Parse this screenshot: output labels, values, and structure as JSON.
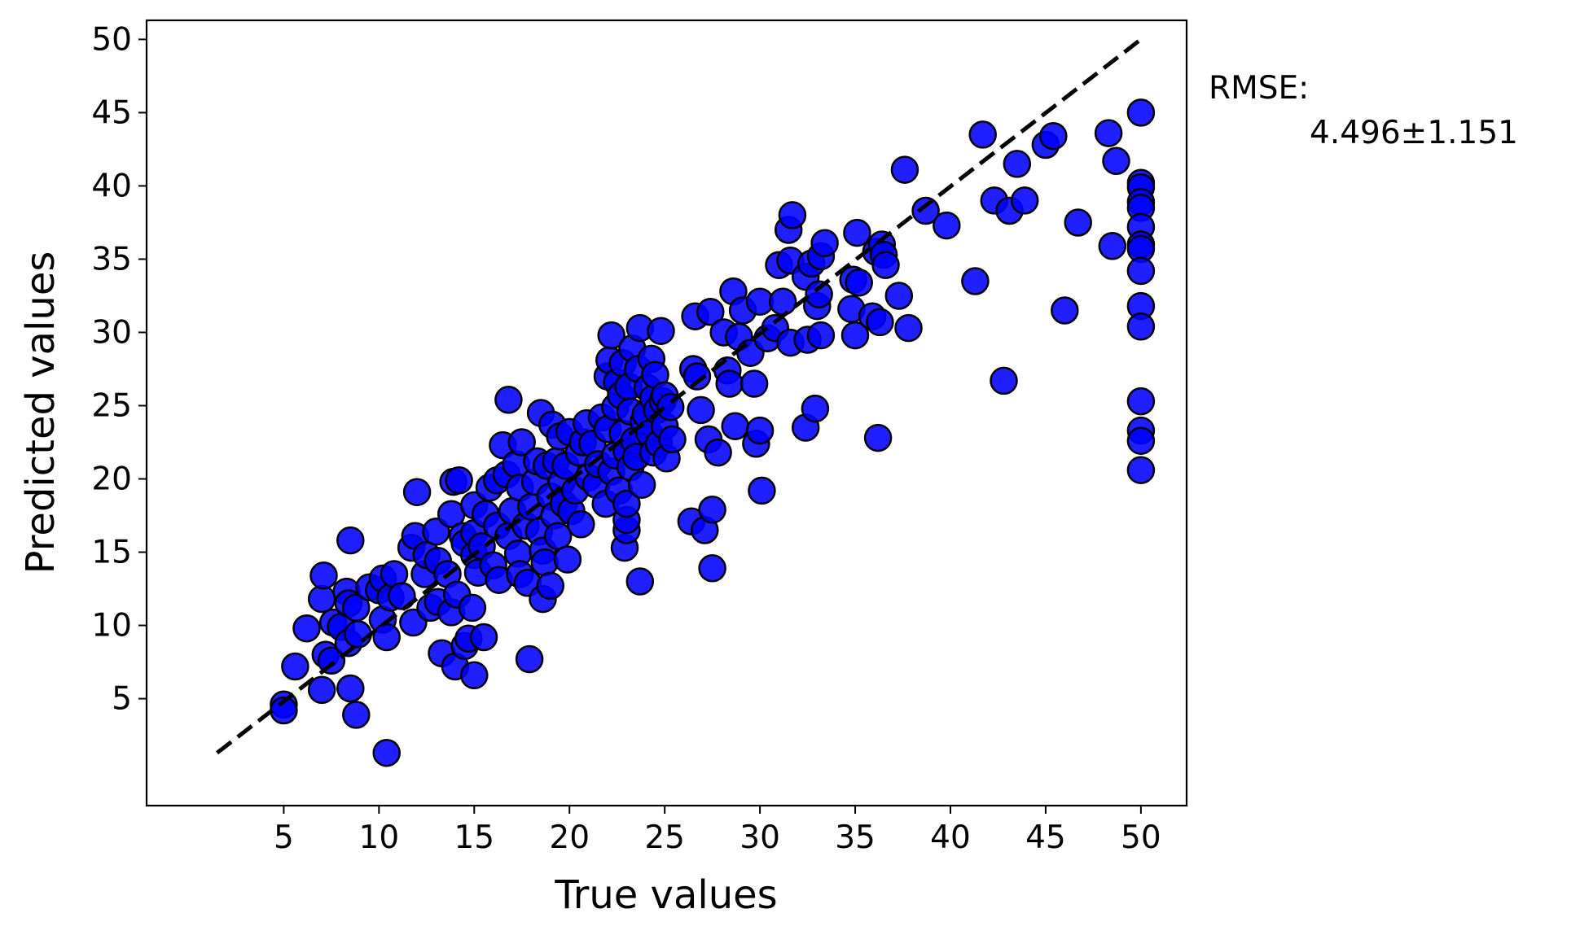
{
  "chart_data": {
    "type": "scatter",
    "xlabel": "True values",
    "ylabel": "Predicted values",
    "xlim": [
      -2.2,
      52.4
    ],
    "ylim": [
      -2.3,
      51.3
    ],
    "xticks": [
      "5",
      "10",
      "15",
      "20",
      "25",
      "30",
      "35",
      "40",
      "45",
      "50"
    ],
    "yticks": [
      "5",
      "10",
      "15",
      "20",
      "25",
      "30",
      "35",
      "40",
      "45",
      "50"
    ],
    "grid": false,
    "reference_line": {
      "style": "dashed",
      "color": "#000000",
      "from": [
        1.5,
        1.3
      ],
      "to": [
        50,
        50
      ]
    },
    "annotation": {
      "label": "RMSE:",
      "value": "4.496±1.151"
    },
    "colors": {
      "marker_fill": "#0000ff",
      "marker_edge": "#000000",
      "line": "#000000"
    },
    "points": [
      [
        5,
        4.6
      ],
      [
        5,
        4.2
      ],
      [
        5.6,
        7.2
      ],
      [
        6.2,
        9.8
      ],
      [
        7,
        11.8
      ],
      [
        7.1,
        13.4
      ],
      [
        7,
        5.6
      ],
      [
        7.2,
        8
      ],
      [
        7.5,
        7.6
      ],
      [
        7.6,
        10.2
      ],
      [
        8,
        9.9
      ],
      [
        8.3,
        12.3
      ],
      [
        8.4,
        11.5
      ],
      [
        8.4,
        8.8
      ],
      [
        8.5,
        5.7
      ],
      [
        8.5,
        15.8
      ],
      [
        8.8,
        3.9
      ],
      [
        8.8,
        11.2
      ],
      [
        8.9,
        9.4
      ],
      [
        9.5,
        12.6
      ],
      [
        10,
        12.4
      ],
      [
        10.2,
        13.2
      ],
      [
        10.2,
        10.4
      ],
      [
        10.4,
        9.2
      ],
      [
        10.4,
        1.3
      ],
      [
        10.6,
        11.9
      ],
      [
        10.8,
        13.5
      ],
      [
        11.2,
        12
      ],
      [
        11.7,
        15.3
      ],
      [
        11.8,
        10.2
      ],
      [
        11.9,
        16.1
      ],
      [
        12,
        19.1
      ],
      [
        12.4,
        13.5
      ],
      [
        12.5,
        14.8
      ],
      [
        12.7,
        11.2
      ],
      [
        13,
        16.4
      ],
      [
        13.1,
        14.4
      ],
      [
        13.1,
        11.6
      ],
      [
        13.3,
        8.1
      ],
      [
        13.6,
        13.5
      ],
      [
        13.8,
        10.9
      ],
      [
        13.8,
        17.6
      ],
      [
        13.9,
        19.8
      ],
      [
        14,
        7.2
      ],
      [
        14.1,
        12.1
      ],
      [
        14.2,
        19.9
      ],
      [
        14.4,
        16.1
      ],
      [
        14.5,
        8.6
      ],
      [
        14.5,
        15.6
      ],
      [
        14.7,
        9.1
      ],
      [
        14.9,
        11.2
      ],
      [
        15,
        14.8
      ],
      [
        15,
        16.3
      ],
      [
        15,
        6.6
      ],
      [
        15,
        18.2
      ],
      [
        15.2,
        13.6
      ],
      [
        15.4,
        15.4
      ],
      [
        15.5,
        9.2
      ],
      [
        15.6,
        17.6
      ],
      [
        15.8,
        19.4
      ],
      [
        16,
        14.1
      ],
      [
        16.2,
        19.9
      ],
      [
        16.2,
        16.8
      ],
      [
        16.3,
        13.1
      ],
      [
        16.5,
        22.3
      ],
      [
        16.7,
        20.3
      ],
      [
        16.8,
        25.4
      ],
      [
        16.8,
        16.1
      ],
      [
        17,
        17.8
      ],
      [
        17.2,
        21
      ],
      [
        17.3,
        14.9
      ],
      [
        17.4,
        19.4
      ],
      [
        17.4,
        13.5
      ],
      [
        17.5,
        22.5
      ],
      [
        17.7,
        16.8
      ],
      [
        17.8,
        12.9
      ],
      [
        17.9,
        7.7
      ],
      [
        18,
        18.1
      ],
      [
        18.2,
        19.8
      ],
      [
        18.3,
        21.2
      ],
      [
        18.4,
        16.4
      ],
      [
        18.5,
        24.5
      ],
      [
        18.6,
        11.8
      ],
      [
        18.6,
        15.1
      ],
      [
        18.7,
        14.3
      ],
      [
        18.8,
        20.9
      ],
      [
        19,
        12.7
      ],
      [
        19,
        18.8
      ],
      [
        19.1,
        23.7
      ],
      [
        19.2,
        17.5
      ],
      [
        19.3,
        21.2
      ],
      [
        19.4,
        16.1
      ],
      [
        19.5,
        22.9
      ],
      [
        19.6,
        19.8
      ],
      [
        19.7,
        18.3
      ],
      [
        19.8,
        20.9
      ],
      [
        19.9,
        14.5
      ],
      [
        20,
        23.2
      ],
      [
        20.1,
        17.8
      ],
      [
        20.3,
        19.2
      ],
      [
        20.5,
        21.8
      ],
      [
        20.6,
        16.9
      ],
      [
        20.7,
        22.5
      ],
      [
        20.9,
        23.8
      ],
      [
        21,
        20.1
      ],
      [
        21.2,
        22.4
      ],
      [
        21.4,
        19.6
      ],
      [
        21.5,
        21
      ],
      [
        21.7,
        24.2
      ],
      [
        21.9,
        18.3
      ],
      [
        22,
        27
      ],
      [
        22,
        23.4
      ],
      [
        22.1,
        28.1
      ],
      [
        22.2,
        29.8
      ],
      [
        22.2,
        20.5
      ],
      [
        22.4,
        24.9
      ],
      [
        22.4,
        21.6
      ],
      [
        22.5,
        26.6
      ],
      [
        22.6,
        19.2
      ],
      [
        22.7,
        25.7
      ],
      [
        22.8,
        23.1
      ],
      [
        22.8,
        27.9
      ],
      [
        22.9,
        15.3
      ],
      [
        23,
        21.9
      ],
      [
        23,
        16.5
      ],
      [
        23,
        17.2
      ],
      [
        23,
        18.3
      ],
      [
        23.1,
        26.3
      ],
      [
        23.2,
        20.8
      ],
      [
        23.2,
        24.6
      ],
      [
        23.3,
        28.9
      ],
      [
        23.4,
        22.6
      ],
      [
        23.5,
        21.5
      ],
      [
        23.6,
        27.5
      ],
      [
        23.7,
        30.3
      ],
      [
        23.7,
        13
      ],
      [
        23.8,
        19.6
      ],
      [
        23.9,
        23.9
      ],
      [
        24,
        24.4
      ],
      [
        24.1,
        26.2
      ],
      [
        24.2,
        23.1
      ],
      [
        24.3,
        28.2
      ],
      [
        24.4,
        25.5
      ],
      [
        24.4,
        21.8
      ],
      [
        24.5,
        27.1
      ],
      [
        24.6,
        24.7
      ],
      [
        24.7,
        22.4
      ],
      [
        24.8,
        30.1
      ],
      [
        24.9,
        25.3
      ],
      [
        25,
        23.6
      ],
      [
        25,
        25.7
      ],
      [
        25.1,
        21.4
      ],
      [
        25.3,
        24.9
      ],
      [
        25.4,
        22.7
      ],
      [
        26.4,
        17.1
      ],
      [
        26.5,
        27.5
      ],
      [
        26.6,
        31.1
      ],
      [
        26.7,
        27
      ],
      [
        26.9,
        24.7
      ],
      [
        27.1,
        16.5
      ],
      [
        27.3,
        22.7
      ],
      [
        27.4,
        31.4
      ],
      [
        27.5,
        17.9
      ],
      [
        27.5,
        13.9
      ],
      [
        27.8,
        21.8
      ],
      [
        28.1,
        30
      ],
      [
        28.3,
        27.4
      ],
      [
        28.4,
        26.5
      ],
      [
        28.6,
        32.8
      ],
      [
        28.7,
        23.6
      ],
      [
        28.9,
        29.7
      ],
      [
        29.1,
        31.5
      ],
      [
        29.5,
        28.6
      ],
      [
        29.7,
        26.5
      ],
      [
        29.8,
        22.4
      ],
      [
        30,
        23.3
      ],
      [
        30,
        32.1
      ],
      [
        30.1,
        19.2
      ],
      [
        30.4,
        29.6
      ],
      [
        30.8,
        30.3
      ],
      [
        31,
        34.6
      ],
      [
        31.2,
        32.1
      ],
      [
        31.5,
        37
      ],
      [
        31.6,
        29.3
      ],
      [
        31.6,
        34.9
      ],
      [
        31.7,
        38
      ],
      [
        32.4,
        23.5
      ],
      [
        32.4,
        33.8
      ],
      [
        32.5,
        29.5
      ],
      [
        32.7,
        34.7
      ],
      [
        32.9,
        24.8
      ],
      [
        33,
        31.8
      ],
      [
        33.1,
        32.6
      ],
      [
        33.2,
        35.2
      ],
      [
        33.2,
        29.8
      ],
      [
        33.4,
        36.1
      ],
      [
        34.8,
        31.6
      ],
      [
        34.9,
        33.6
      ],
      [
        35,
        29.8
      ],
      [
        35.1,
        36.8
      ],
      [
        35.2,
        33.4
      ],
      [
        35.9,
        31.1
      ],
      [
        36.1,
        35.5
      ],
      [
        36.2,
        22.8
      ],
      [
        36.3,
        30.7
      ],
      [
        36.4,
        36
      ],
      [
        36.5,
        35.3
      ],
      [
        36.6,
        34.6
      ],
      [
        37.3,
        32.5
      ],
      [
        37.6,
        41.1
      ],
      [
        37.8,
        30.3
      ],
      [
        38.7,
        38.3
      ],
      [
        39.8,
        37.3
      ],
      [
        41.3,
        33.5
      ],
      [
        41.7,
        43.5
      ],
      [
        42.3,
        39
      ],
      [
        42.8,
        26.7
      ],
      [
        43.1,
        38.3
      ],
      [
        43.5,
        41.5
      ],
      [
        43.9,
        39
      ],
      [
        46,
        31.5
      ],
      [
        45,
        42.8
      ],
      [
        45.4,
        43.4
      ],
      [
        46.7,
        37.5
      ],
      [
        48.3,
        43.6
      ],
      [
        48.5,
        35.9
      ],
      [
        48.7,
        41.7
      ],
      [
        50,
        45
      ],
      [
        50,
        40.2
      ],
      [
        50,
        39.9
      ],
      [
        50,
        38.9
      ],
      [
        50,
        38.5
      ],
      [
        50,
        37.2
      ],
      [
        50,
        36
      ],
      [
        50,
        35.7
      ],
      [
        50,
        34.2
      ],
      [
        50,
        31.8
      ],
      [
        50,
        30.4
      ],
      [
        50,
        25.3
      ],
      [
        50,
        23.3
      ],
      [
        50,
        22.6
      ],
      [
        50,
        20.6
      ]
    ]
  }
}
